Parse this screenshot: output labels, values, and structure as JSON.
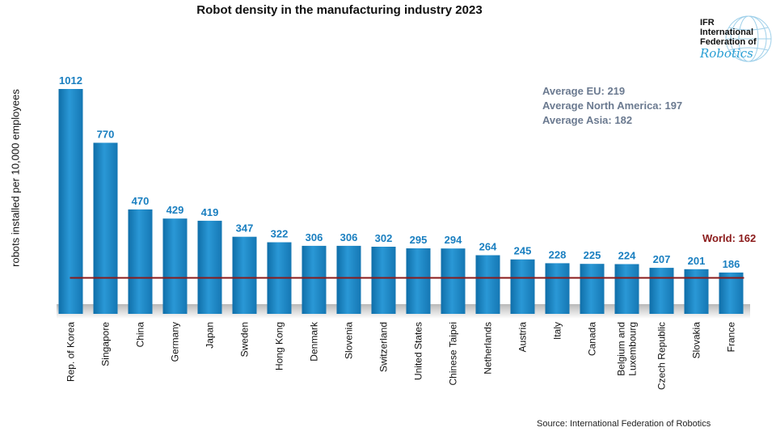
{
  "chart_data": {
    "type": "bar",
    "title": "Robot density in the manufacturing industry 2023",
    "ylabel": "robots installed per 10,000 employees",
    "xlabel": "",
    "ylim": [
      0,
      1012
    ],
    "categories": [
      [
        "Rep. of Korea"
      ],
      [
        "Singapore"
      ],
      [
        "China"
      ],
      [
        "Germany"
      ],
      [
        "Japan"
      ],
      [
        "Sweden"
      ],
      [
        "Hong Kong"
      ],
      [
        "Denmark"
      ],
      [
        "Slovenia"
      ],
      [
        "Switzerland"
      ],
      [
        "United States"
      ],
      [
        "Chinese Taipei"
      ],
      [
        "Netherlands"
      ],
      [
        "Austria"
      ],
      [
        "Italy"
      ],
      [
        "Canada"
      ],
      [
        "Belgium and",
        "Luxembourg"
      ],
      [
        "Czech Republic"
      ],
      [
        "Slovakia"
      ],
      [
        "France"
      ]
    ],
    "values": [
      1012,
      770,
      470,
      429,
      419,
      347,
      322,
      306,
      306,
      302,
      295,
      294,
      264,
      245,
      228,
      225,
      224,
      207,
      201,
      186
    ],
    "reference_line": {
      "label": "World: 162",
      "value": 162,
      "color": "#8b1a1a"
    },
    "bar_color": "#1a86c4",
    "value_label_color": "#1a7fc0"
  },
  "annotations": {
    "averages": [
      "Average EU: 219",
      "Average North America: 197",
      "Average Asia: 182"
    ],
    "source": "Source: International Federation of Robotics"
  },
  "logo": {
    "line1": "IFR",
    "line2": "International",
    "line3": "Federation of",
    "line4": "Robotics",
    "icon": "globe-icon"
  }
}
